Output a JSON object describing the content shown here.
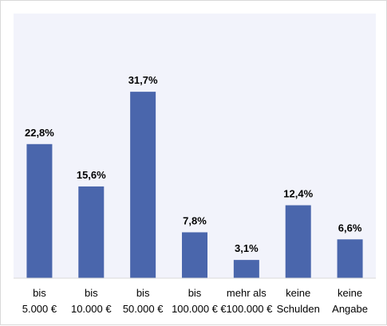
{
  "chart_data": {
    "type": "bar",
    "categories": [
      [
        "bis",
        "5.000 €"
      ],
      [
        "bis",
        "10.000 €"
      ],
      [
        "bis",
        "50.000 €"
      ],
      [
        "bis",
        "100.000 €"
      ],
      [
        "mehr als",
        "€100.000 €"
      ],
      [
        "keine",
        "Schulden"
      ],
      [
        "keine",
        "Angabe"
      ]
    ],
    "values": [
      22.8,
      15.6,
      31.7,
      7.8,
      3.1,
      12.4,
      6.6
    ],
    "data_labels": [
      "22,8%",
      "15,6%",
      "31,7%",
      "7,8%",
      "3,1%",
      "12,4%",
      "6,6%"
    ],
    "ylim": [
      0,
      45
    ],
    "grid": false,
    "legend": "none",
    "colors": {
      "bar": "#4a66ac",
      "plot_background": "#f2f3fb",
      "axis": "#d9d9d9"
    }
  }
}
